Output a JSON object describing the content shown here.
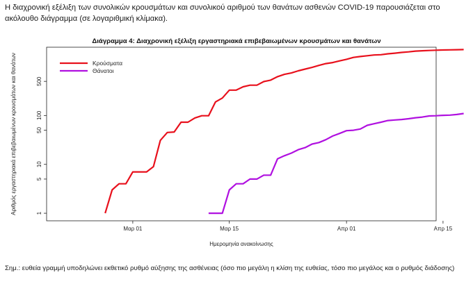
{
  "intro_text": "Η διαχρονική εξέλιξη των συνολικών κρουσμάτων και συνολικού αριθμού των θανάτων ασθενών COVID-19 παρουσιάζεται στο ακόλουθο διάγραμμα (σε λογαριθμική κλίμακα).",
  "footnote": "Σημ.: ευθεία γραμμή υποδηλώνει εκθετικό ρυθμό αύξησης της ασθένειας (όσο πιο μεγάλη η κλίση της ευθείας, τόσο πιο μεγάλος και ο ρυθμός διάδοσης)",
  "chart_data": {
    "type": "line",
    "title": "Διάγραμμα 4: Διαχρονική εξέλιξη εργαστηριακά επιβεβαιωμένων κρουσμάτων και θανάτων",
    "xlabel": "Ημερομηνία ανακοίνωσης",
    "ylabel": "Αριθμός εργαστηριακά επιβεβαιωμένων κρουσμάτων και θανάτων",
    "y_scale": "log",
    "ylim": [
      0.7,
      2500
    ],
    "xlim_days": [
      -8.5,
      48
    ],
    "x_axis_day0": "Feb 26",
    "x_ticks": [
      {
        "day": 4,
        "label": "Μαρ 01"
      },
      {
        "day": 18,
        "label": "Μαρ 15"
      },
      {
        "day": 35,
        "label": "Απρ 01"
      },
      {
        "day": 49,
        "label": "Απρ 15"
      }
    ],
    "y_ticks": [
      1,
      5,
      10,
      50,
      100,
      500
    ],
    "legend_position": "top-left",
    "series": [
      {
        "name": "Κρούσματα",
        "color": "#e8101c",
        "x": [
          0,
          1,
          2,
          3,
          4,
          5,
          6,
          7,
          8,
          9,
          10,
          11,
          12,
          13,
          14,
          15,
          16,
          17,
          18,
          19,
          20,
          21,
          22,
          23,
          24,
          25,
          26,
          27,
          28,
          29,
          30,
          31,
          32,
          33,
          34,
          35,
          36,
          37,
          38,
          39,
          40,
          41,
          42,
          43,
          44,
          45,
          46,
          47,
          48,
          49,
          50,
          51,
          52
        ],
        "values": [
          1,
          3,
          4,
          4,
          7,
          7,
          7,
          9,
          31,
          45,
          46,
          73,
          73,
          89,
          99,
          99,
          190,
          228,
          331,
          331,
          387,
          418,
          418,
          495,
          530,
          624,
          695,
          743,
          821,
          892,
          966,
          1061,
          1156,
          1212,
          1314,
          1415,
          1544,
          1613,
          1673,
          1735,
          1755,
          1832,
          1884,
          1955,
          2011,
          2081,
          2114,
          2145,
          2170,
          2192,
          2207,
          2224,
          2235
        ]
      },
      {
        "name": "Θάνατοι",
        "color": "#b010e0",
        "x": [
          15,
          16,
          17,
          18,
          19,
          20,
          21,
          22,
          23,
          24,
          25,
          26,
          27,
          28,
          29,
          30,
          31,
          32,
          33,
          34,
          35,
          36,
          37,
          38,
          39,
          40,
          41,
          42,
          43,
          44,
          45,
          46,
          47,
          48,
          49,
          50,
          51,
          52
        ],
        "values": [
          1,
          1,
          1,
          3,
          4,
          4,
          5,
          5,
          6,
          6,
          13,
          15,
          17,
          20,
          22,
          26,
          28,
          32,
          38,
          43,
          49,
          50,
          53,
          63,
          68,
          73,
          79,
          81,
          83,
          86,
          90,
          93,
          98,
          99,
          101,
          102,
          105,
          110
        ]
      }
    ]
  }
}
